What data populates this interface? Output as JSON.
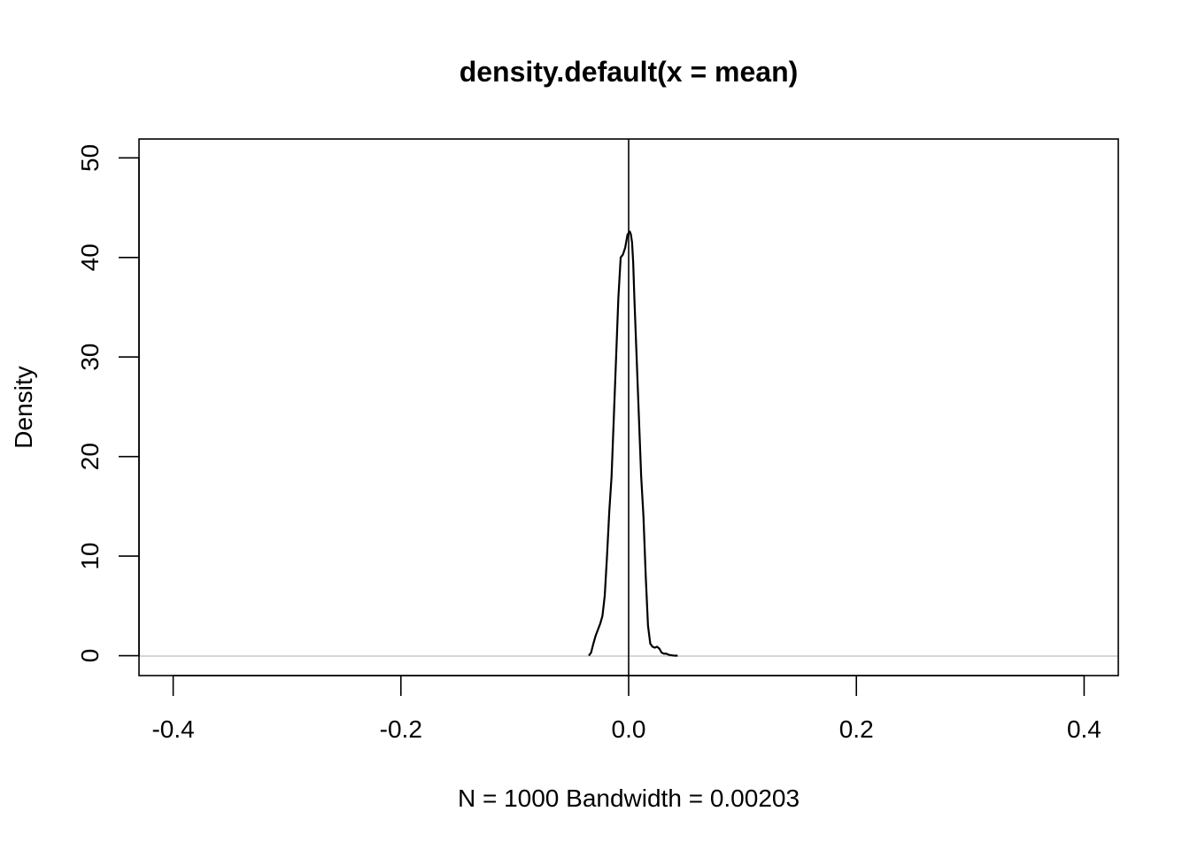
{
  "chart_data": {
    "type": "line",
    "title": "density.default(x = mean)",
    "xlabel": "N = 1000   Bandwidth = 0.00203",
    "ylabel": "Density",
    "xlim": [
      -0.43,
      0.43
    ],
    "ylim": [
      -2.0,
      51.9
    ],
    "x_ticks": [
      -0.4,
      -0.2,
      0.0,
      0.2,
      0.4
    ],
    "x_tick_labels": [
      "-0.4",
      "-0.2",
      "0.0",
      "0.2",
      "0.4"
    ],
    "y_ticks": [
      0,
      10,
      20,
      30,
      40,
      50
    ],
    "y_tick_labels": [
      "0",
      "10",
      "20",
      "30",
      "40",
      "50"
    ],
    "grid": false,
    "reference_lines": {
      "horizontal_at_y": 0,
      "vertical_at_x": 0
    },
    "colors": {
      "line": "#000000",
      "zero_line": "#bebebe",
      "vline": "#000000"
    },
    "series": [
      {
        "x": [
          -0.035,
          -0.033,
          -0.031,
          -0.029,
          -0.027,
          -0.025,
          -0.023,
          -0.021,
          -0.019,
          -0.017,
          -0.015,
          -0.013,
          -0.011,
          -0.009,
          -0.007,
          -0.005,
          -0.003,
          -0.001,
          0.001,
          0.002,
          0.003,
          0.004,
          0.005,
          0.007,
          0.009,
          0.011,
          0.013,
          0.015,
          0.017,
          0.019,
          0.021,
          0.023,
          0.025,
          0.027,
          0.029,
          0.031,
          0.033,
          0.035,
          0.037,
          0.039,
          0.041,
          0.043
        ],
        "y": [
          0.0,
          0.3,
          1.2,
          2.0,
          2.6,
          3.2,
          4.0,
          6.0,
          10.0,
          14.5,
          18.0,
          24.0,
          30.0,
          36.0,
          40.0,
          40.3,
          41.0,
          42.3,
          42.6,
          42.3,
          41.5,
          39.5,
          36.0,
          30.0,
          24.0,
          18.0,
          14.0,
          8.0,
          3.0,
          1.2,
          0.9,
          0.8,
          0.9,
          0.7,
          0.3,
          0.2,
          0.2,
          0.1,
          0.05,
          0.02,
          0.0,
          0.0
        ]
      }
    ]
  }
}
